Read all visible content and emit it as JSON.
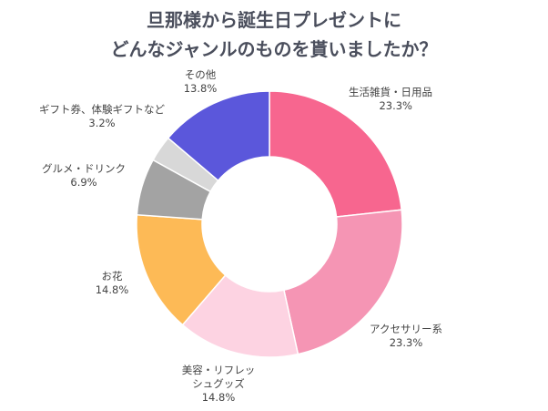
{
  "chart_data": {
    "type": "pie",
    "donut": true,
    "title_lines": [
      "旦那様から誕生日プレゼントに",
      "どんなジャンルのものを貰いましたか？"
    ],
    "slices": [
      {
        "label": "生活雑貨・日用品",
        "value": 23.3,
        "display": "23.3%",
        "color": "#F7668F"
      },
      {
        "label": "アクセサリー系",
        "value": 23.3,
        "display": "23.3%",
        "color": "#F595B4"
      },
      {
        "label": "美容・リフレッシュグッズ",
        "label_lines": [
          "美容・リフレッ",
          "シュグッズ"
        ],
        "value": 14.8,
        "display": "14.8%",
        "color": "#FDD3E2"
      },
      {
        "label": "お花",
        "value": 14.8,
        "display": "14.8%",
        "color": "#FDBA56"
      },
      {
        "label": "グルメ・ドリンク",
        "value": 6.9,
        "display": "6.9%",
        "color": "#A3A3A3"
      },
      {
        "label": "ギフト券、体験ギフトなど",
        "value": 3.2,
        "display": "3.2%",
        "color": "#D8D8D8"
      },
      {
        "label": "その他",
        "value": 13.8,
        "display": "13.8%",
        "color": "#5B57DB"
      }
    ],
    "start_angle": "12 o'clock",
    "direction": "clockwise"
  }
}
